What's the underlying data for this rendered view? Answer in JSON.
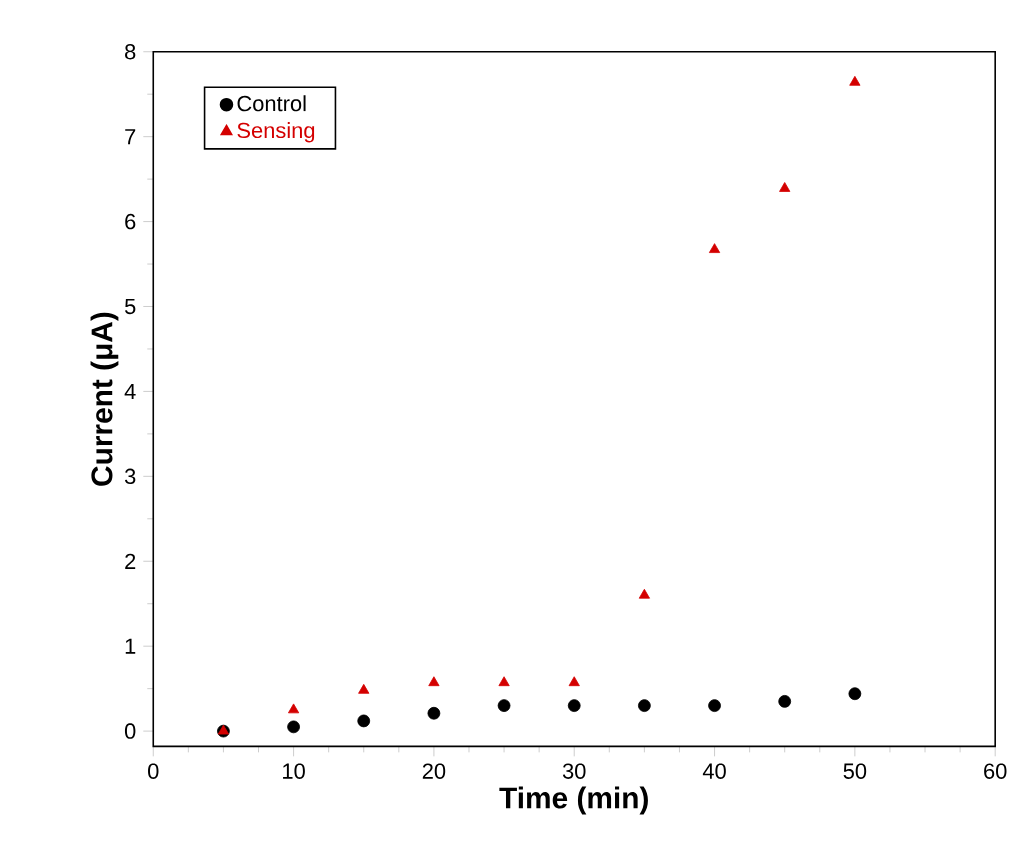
{
  "chart_data": {
    "type": "scatter",
    "xlabel": "Time (min)",
    "ylabel": "Current (μA)",
    "x": [
      5,
      10,
      15,
      20,
      25,
      30,
      35,
      40,
      45,
      50
    ],
    "series": [
      {
        "name": "Control",
        "color": "#000000",
        "marker": "circle",
        "values": [
          0.0,
          0.05,
          0.12,
          0.21,
          0.3,
          0.3,
          0.3,
          0.3,
          0.35,
          0.44
        ]
      },
      {
        "name": "Sensing",
        "color": "#d40000",
        "marker": "triangle",
        "values": [
          0.0,
          0.25,
          0.48,
          0.57,
          0.57,
          0.57,
          1.6,
          5.67,
          6.39,
          7.64
        ]
      }
    ],
    "xlim": [
      0,
      60
    ],
    "xticks": [
      0,
      10,
      20,
      30,
      40,
      50,
      60
    ],
    "ylim": [
      -0.18,
      8
    ],
    "yticks": [
      0,
      1,
      2,
      3,
      4,
      5,
      6,
      7,
      8
    ],
    "grid": false,
    "legend": "top left"
  }
}
